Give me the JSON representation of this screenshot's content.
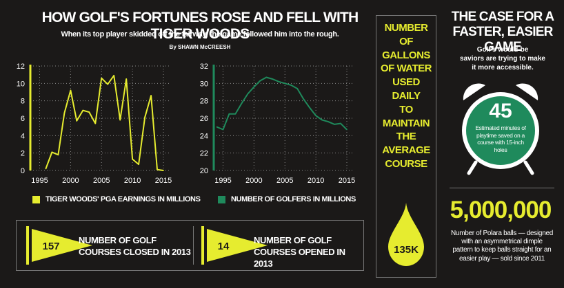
{
  "header": {
    "title": "HOW GOLF'S FORTUNES ROSE AND FELL WITH TIGER WOODS",
    "subtitle": "When its top player skidded off the fairway, the game followed him into the rough.",
    "byline": "By SHAWN McCREESH"
  },
  "colors": {
    "background": "#1b1918",
    "yellow": "#e6ec2f",
    "green": "#1f8a5c",
    "white": "#ffffff"
  },
  "chart_data": [
    {
      "type": "line",
      "legend": "TIGER WOODS' PGA EARNINGS IN MILLIONS",
      "series": [
        {
          "name": "TIGER WOODS' PGA EARNINGS IN MILLIONS",
          "x": [
            1996,
            1997,
            1998,
            1999,
            2000,
            2001,
            2002,
            2003,
            2004,
            2005,
            2006,
            2007,
            2008,
            2009,
            2010,
            2011,
            2012,
            2013,
            2014,
            2015
          ],
          "values": [
            0.2,
            2.1,
            1.8,
            6.6,
            9.2,
            5.7,
            6.9,
            6.7,
            5.4,
            10.6,
            9.9,
            10.9,
            5.8,
            10.5,
            1.3,
            0.7,
            6.1,
            8.6,
            0.1,
            0.0
          ]
        }
      ],
      "xticks": [
        1995,
        2000,
        2005,
        2010,
        2015
      ],
      "yticks": [
        0,
        2,
        4,
        6,
        8,
        10,
        12
      ],
      "xlim": [
        1993.5,
        2016
      ],
      "ylim": [
        0,
        12
      ],
      "color": "#e6ec2f",
      "grid": "dotted"
    },
    {
      "type": "line",
      "legend": "NUMBER OF GOLFERS IN MILLIONS",
      "series": [
        {
          "name": "NUMBER OF GOLFERS IN MILLIONS",
          "x": [
            1994,
            1995,
            1996,
            1997,
            1998,
            1999,
            2000,
            2001,
            2002,
            2003,
            2004,
            2005,
            2006,
            2007,
            2008,
            2009,
            2010,
            2011,
            2012,
            2013,
            2014,
            2015
          ],
          "values": [
            25.0,
            24.7,
            26.5,
            26.5,
            27.7,
            28.8,
            29.6,
            30.3,
            30.7,
            30.5,
            30.2,
            30.0,
            29.8,
            29.4,
            28.2,
            27.2,
            26.3,
            25.8,
            25.6,
            25.3,
            25.4,
            24.7
          ]
        }
      ],
      "xticks": [
        1995,
        2000,
        2005,
        2010,
        2015
      ],
      "yticks": [
        20,
        22,
        24,
        26,
        28,
        30,
        32
      ],
      "xlim": [
        1993.5,
        2016
      ],
      "ylim": [
        20,
        32
      ],
      "color": "#1f8a5c",
      "grid": "dotted"
    }
  ],
  "courses": {
    "closed": {
      "value": "157",
      "label_line1": "NUMBER OF GOLF",
      "label_prefix": "COURSES ",
      "label_emph": "CLOSED",
      "label_suffix": " IN 2013"
    },
    "opened": {
      "value": "14",
      "label_line1": "NUMBER OF GOLF",
      "label_prefix": "COURSES ",
      "label_emph": "OPENED",
      "label_suffix": " IN 2013"
    }
  },
  "water": {
    "lines": [
      "NUMBER",
      "OF",
      "GALLONS",
      "OF WATER",
      "USED",
      "DAILY",
      "TO",
      "MAINTAIN",
      "THE",
      "AVERAGE",
      "COURSE"
    ],
    "value": "135K"
  },
  "case": {
    "title_line1": "THE CASE FOR A",
    "title_line2": "FASTER, EASIER GAME",
    "sub_line1": "Golf's would-be",
    "sub_line2": "saviors are trying to make",
    "sub_line3": "it more accessible.",
    "clock_value": "45",
    "clock_desc": [
      "Estimated minutes of",
      "playtime saved on a",
      "course with 15-inch",
      "holes"
    ],
    "balls_value": "5,000,000",
    "balls_desc": [
      "Number of Polara balls — designed",
      "with an asymmetrical dimple",
      "pattern to keep balls straight for an",
      "easier play — sold since 2011"
    ]
  }
}
